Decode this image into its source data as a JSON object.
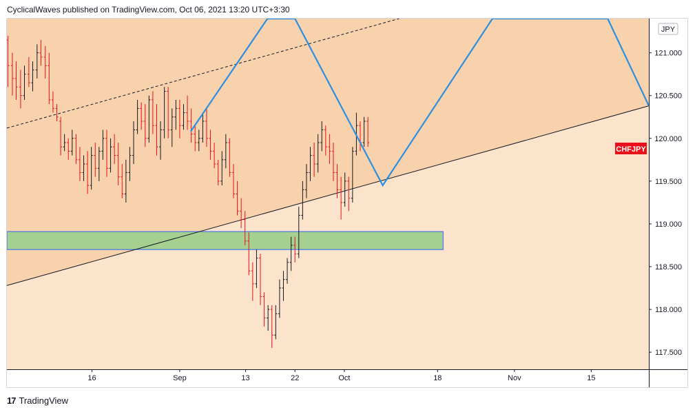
{
  "header": {
    "publish_line": "CyclicalWaves published on TradingView.com, Oct 06, 2021 13:20 UTC+3:30"
  },
  "footer": {
    "logo_mark": "17",
    "brand": "TradingView"
  },
  "price_scale": {
    "currency": "JPY",
    "ticks": [
      "121.000",
      "120.500",
      "120.000",
      "119.500",
      "119.000",
      "118.500",
      "118.000",
      "117.500"
    ],
    "last_price_label": "CHFJPY",
    "last_price_color": "#e8111b"
  },
  "time_scale": {
    "ticks": [
      {
        "label": "16",
        "day": 16
      },
      {
        "label": "Sep",
        "day": 32
      },
      {
        "label": "13",
        "day": 44
      },
      {
        "label": "22",
        "day": 53
      },
      {
        "label": "Oct",
        "day": 62
      },
      {
        "label": "18",
        "day": 79
      },
      {
        "label": "Nov",
        "day": 93
      },
      {
        "label": "15",
        "day": 107
      }
    ]
  },
  "colors": {
    "bull": "#131722",
    "bear": "#e8111b",
    "channel_fill": "#f8d2ad",
    "lower_fill": "#fce3cc",
    "zone_fill": "#a5d08f",
    "zone_border": "#2962ff",
    "zigzag": "#2a8fe0",
    "trendline": "#131722"
  },
  "chart_data": {
    "type": "ohlc",
    "symbol": "CHFJPY",
    "x_unit": "days from 2021-08-01",
    "ylim": [
      117.3,
      121.4
    ],
    "xlim": [
      0.5,
      117.5
    ],
    "annotations": {
      "support_zone": {
        "x": [
          0.5,
          80
        ],
        "y": [
          118.7,
          118.91
        ]
      },
      "trendline": [
        [
          0.5,
          118.28
        ],
        [
          117.5,
          120.38
        ]
      ],
      "dashed_line": [
        [
          0.5,
          120.12
        ],
        [
          72,
          121.4
        ]
      ],
      "zigzag": [
        [
          34,
          120.08
        ],
        [
          48,
          121.4
        ],
        [
          53,
          121.4
        ],
        [
          69,
          119.45
        ],
        [
          89,
          121.4
        ],
        [
          110,
          121.4
        ],
        [
          117.5,
          120.38
        ]
      ]
    },
    "candles": [
      [
        0.7,
        121.15,
        121.2,
        120.6,
        120.85
      ],
      [
        1.5,
        120.85,
        121.0,
        120.5,
        120.7
      ],
      [
        2.2,
        120.7,
        120.9,
        120.45,
        120.6
      ],
      [
        3.0,
        120.6,
        120.8,
        120.35,
        120.5
      ],
      [
        3.7,
        120.5,
        120.85,
        120.45,
        120.75
      ],
      [
        4.5,
        120.75,
        120.95,
        120.6,
        120.65
      ],
      [
        5.2,
        120.65,
        120.9,
        120.55,
        120.8
      ],
      [
        6.0,
        120.8,
        121.1,
        120.7,
        121.0
      ],
      [
        6.7,
        121.0,
        121.15,
        120.85,
        120.95
      ],
      [
        7.5,
        120.95,
        121.08,
        120.7,
        120.85
      ],
      [
        8.2,
        120.85,
        121.0,
        120.4,
        120.45
      ],
      [
        8.9,
        120.45,
        120.55,
        120.3,
        120.35
      ],
      [
        9.6,
        120.35,
        120.4,
        120.2,
        120.25
      ],
      [
        10.3,
        120.2,
        120.25,
        119.8,
        119.9
      ],
      [
        11.0,
        119.9,
        120.05,
        119.85,
        119.95
      ],
      [
        11.7,
        119.95,
        120.0,
        119.75,
        119.85
      ],
      [
        12.4,
        119.85,
        120.1,
        119.8,
        120.0
      ],
      [
        13.1,
        120.0,
        120.05,
        119.7,
        119.75
      ],
      [
        13.8,
        119.75,
        119.9,
        119.5,
        119.6
      ],
      [
        14.5,
        119.6,
        119.8,
        119.5,
        119.7
      ],
      [
        15.2,
        119.7,
        119.85,
        119.35,
        119.45
      ],
      [
        15.9,
        119.45,
        119.9,
        119.4,
        119.8
      ],
      [
        16.6,
        119.8,
        119.95,
        119.55,
        119.65
      ],
      [
        17.3,
        119.65,
        119.9,
        119.5,
        119.85
      ],
      [
        18.0,
        119.85,
        120.1,
        119.75,
        120.0
      ],
      [
        18.7,
        120.0,
        120.1,
        119.55,
        119.65
      ],
      [
        19.4,
        119.65,
        120.0,
        119.6,
        119.9
      ],
      [
        20.1,
        119.9,
        120.05,
        119.7,
        119.8
      ],
      [
        20.8,
        119.8,
        119.95,
        119.45,
        119.55
      ],
      [
        21.5,
        119.55,
        119.7,
        119.3,
        119.35
      ],
      [
        22.2,
        119.35,
        119.75,
        119.25,
        119.6
      ],
      [
        22.9,
        119.6,
        119.9,
        119.5,
        119.8
      ],
      [
        23.6,
        119.8,
        120.2,
        119.7,
        120.1
      ],
      [
        24.3,
        120.1,
        120.45,
        120.05,
        120.35
      ],
      [
        25.0,
        120.35,
        120.42,
        120.1,
        120.2
      ],
      [
        25.7,
        120.2,
        120.4,
        119.9,
        120.0
      ],
      [
        26.4,
        120.0,
        120.5,
        119.95,
        120.45
      ],
      [
        27.1,
        120.45,
        120.55,
        120.05,
        120.15
      ],
      [
        27.8,
        120.15,
        120.4,
        119.8,
        119.9
      ],
      [
        28.5,
        119.9,
        120.2,
        119.75,
        120.1
      ],
      [
        29.2,
        120.1,
        120.6,
        120.0,
        120.55
      ],
      [
        29.9,
        120.55,
        120.6,
        120.0,
        120.1
      ],
      [
        30.6,
        120.1,
        120.35,
        119.9,
        120.25
      ],
      [
        31.3,
        120.25,
        120.45,
        120.1,
        120.35
      ],
      [
        32.0,
        120.35,
        120.45,
        120.0,
        120.15
      ],
      [
        32.7,
        120.15,
        120.4,
        120.1,
        120.3
      ],
      [
        33.4,
        120.3,
        120.5,
        120.1,
        120.2
      ],
      [
        34.1,
        120.2,
        120.35,
        119.95,
        120.05
      ],
      [
        34.8,
        120.05,
        120.15,
        119.85,
        119.95
      ],
      [
        35.5,
        119.95,
        120.1,
        119.85,
        120.0
      ],
      [
        36.2,
        120.0,
        120.3,
        119.95,
        120.2
      ],
      [
        36.9,
        120.2,
        120.35,
        119.9,
        120.0
      ],
      [
        37.6,
        120.0,
        120.1,
        119.75,
        119.85
      ],
      [
        38.3,
        119.85,
        119.95,
        119.65,
        119.7
      ],
      [
        39.0,
        119.7,
        119.75,
        119.45,
        119.5
      ],
      [
        39.7,
        119.5,
        119.85,
        119.45,
        119.75
      ],
      [
        40.4,
        119.75,
        120.05,
        119.65,
        119.95
      ],
      [
        41.1,
        119.95,
        120.0,
        119.55,
        119.6
      ],
      [
        41.8,
        119.6,
        119.7,
        119.3,
        119.35
      ],
      [
        42.5,
        119.35,
        119.5,
        119.1,
        119.15
      ],
      [
        43.2,
        119.15,
        119.3,
        118.95,
        119.05
      ],
      [
        43.9,
        119.05,
        119.15,
        118.75,
        118.8
      ],
      [
        44.6,
        118.8,
        118.9,
        118.4,
        118.45
      ],
      [
        45.3,
        118.45,
        118.55,
        118.1,
        118.3
      ],
      [
        46.0,
        118.3,
        118.7,
        118.25,
        118.6
      ],
      [
        46.7,
        118.6,
        118.65,
        118.05,
        118.15
      ],
      [
        47.4,
        118.15,
        118.2,
        117.8,
        117.9
      ],
      [
        48.1,
        117.9,
        118.05,
        117.75,
        118.0
      ],
      [
        48.8,
        118.0,
        118.05,
        117.55,
        117.7
      ],
      [
        49.5,
        117.7,
        118.05,
        117.65,
        117.95
      ],
      [
        50.2,
        117.95,
        118.35,
        117.9,
        118.25
      ],
      [
        50.9,
        118.25,
        118.45,
        118.1,
        118.35
      ],
      [
        51.6,
        118.35,
        118.6,
        118.3,
        118.55
      ],
      [
        52.3,
        118.55,
        118.85,
        118.45,
        118.75
      ],
      [
        53.0,
        118.75,
        118.85,
        118.55,
        118.65
      ],
      [
        53.7,
        118.65,
        119.2,
        118.6,
        119.1
      ],
      [
        54.4,
        119.1,
        119.5,
        119.05,
        119.4
      ],
      [
        55.1,
        119.4,
        119.7,
        119.3,
        119.6
      ],
      [
        55.8,
        119.6,
        119.9,
        119.5,
        119.8
      ],
      [
        56.5,
        119.8,
        119.95,
        119.55,
        119.7
      ],
      [
        57.2,
        119.7,
        120.05,
        119.6,
        119.95
      ],
      [
        57.9,
        119.95,
        120.2,
        119.85,
        120.1
      ],
      [
        58.6,
        120.1,
        120.15,
        119.8,
        119.9
      ],
      [
        59.3,
        119.9,
        120.05,
        119.7,
        119.85
      ],
      [
        60.0,
        119.85,
        119.95,
        119.5,
        119.6
      ],
      [
        60.7,
        119.6,
        119.7,
        119.3,
        119.4
      ],
      [
        61.4,
        119.4,
        119.55,
        119.05,
        119.25
      ],
      [
        62.1,
        119.25,
        119.6,
        119.2,
        119.5
      ],
      [
        62.8,
        119.5,
        119.55,
        119.15,
        119.3
      ],
      [
        63.5,
        119.3,
        119.9,
        119.25,
        119.85
      ],
      [
        64.2,
        119.85,
        120.3,
        119.8,
        120.15
      ],
      [
        64.9,
        120.15,
        120.2,
        119.85,
        119.95
      ],
      [
        65.6,
        119.95,
        120.25,
        119.9,
        120.2
      ],
      [
        66.3,
        120.2,
        120.25,
        119.9,
        119.95
      ]
    ]
  }
}
